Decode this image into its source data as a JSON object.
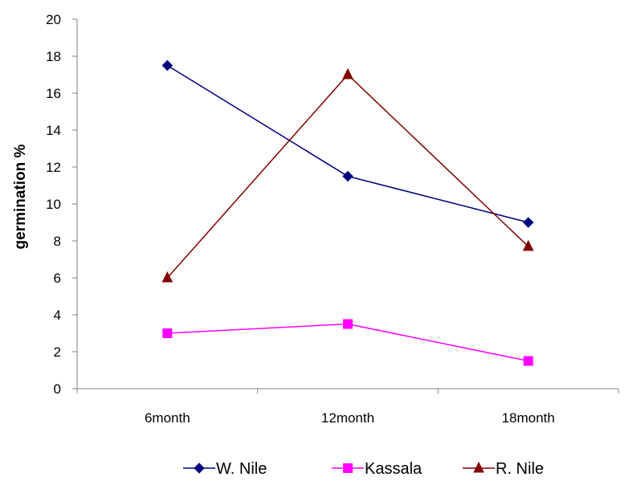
{
  "chart_data": {
    "type": "line",
    "title": "",
    "xlabel": "",
    "ylabel": "germination %",
    "categories": [
      "6month",
      "12month",
      "18month"
    ],
    "ylim": [
      0,
      20
    ],
    "yticks": [
      0,
      2,
      4,
      6,
      8,
      10,
      12,
      14,
      16,
      18,
      20
    ],
    "grid": false,
    "legend_position": "bottom",
    "series": [
      {
        "name": "W. Nile",
        "values": [
          17.5,
          11.5,
          9.0
        ],
        "color": "#000080",
        "marker": "diamond"
      },
      {
        "name": "Kassala",
        "values": [
          3.0,
          3.5,
          1.5
        ],
        "color": "#FF00FF",
        "marker": "square"
      },
      {
        "name": "R. Nile",
        "values": [
          6.0,
          17.0,
          7.7
        ],
        "color": "#800000",
        "marker": "triangle"
      }
    ]
  }
}
